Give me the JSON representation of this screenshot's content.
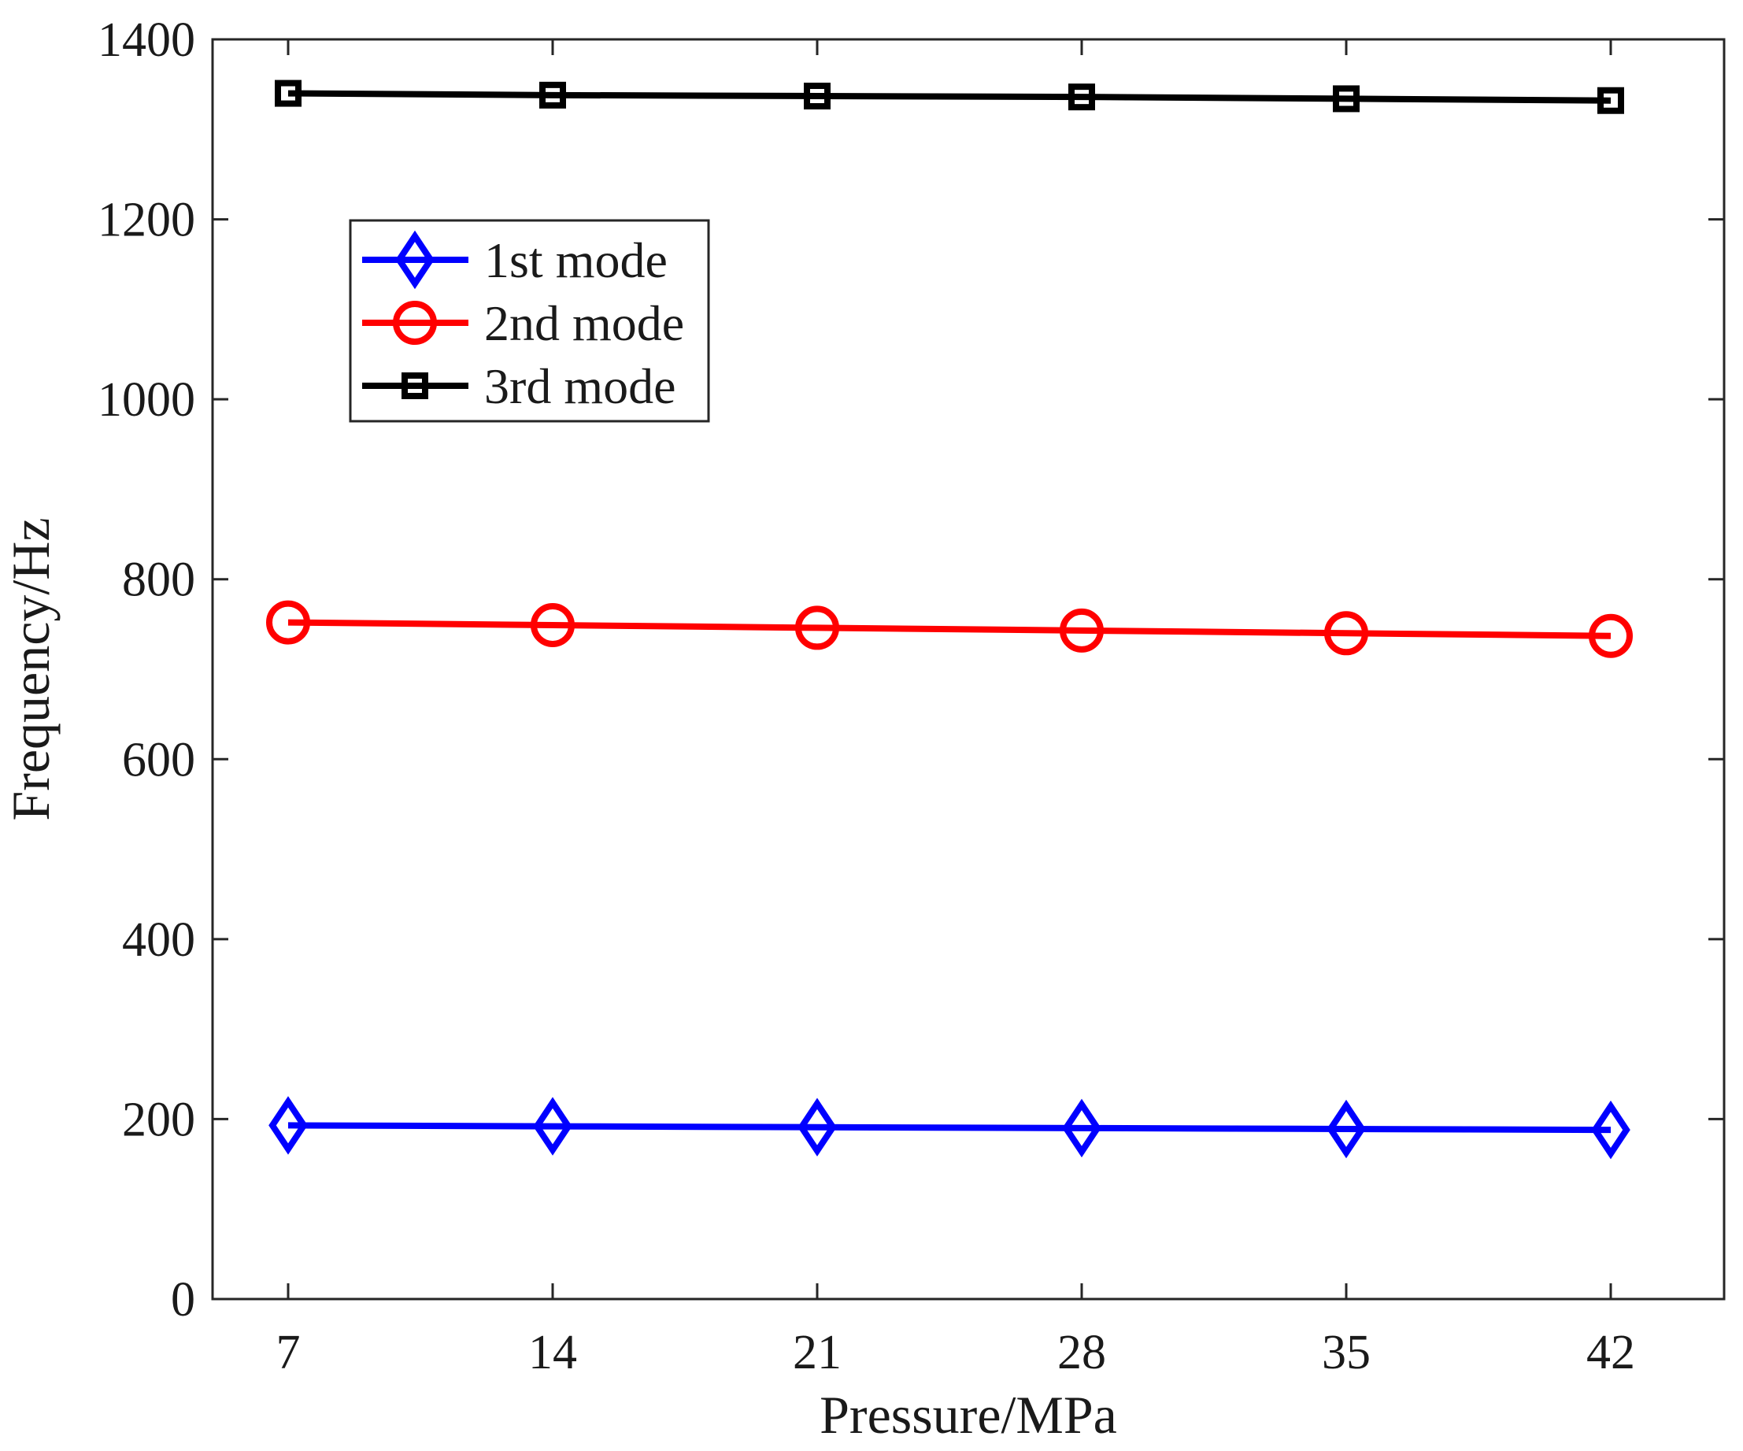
{
  "chart_data": {
    "type": "line",
    "title": "",
    "xlabel": "Pressure/MPa",
    "ylabel": "Frequency/Hz",
    "x": [
      7,
      14,
      21,
      28,
      35,
      42
    ],
    "xlim": [
      5,
      45
    ],
    "ylim": [
      0,
      1400
    ],
    "yticks": [
      0,
      200,
      400,
      600,
      800,
      1000,
      1200,
      1400
    ],
    "xticks": [
      7,
      14,
      21,
      28,
      35,
      42
    ],
    "grid": false,
    "legend_position": "upper-left",
    "series": [
      {
        "name": "1st mode",
        "color": "#0000ff",
        "marker": "diamond",
        "values": [
          193,
          192,
          191,
          190,
          189,
          188
        ]
      },
      {
        "name": "2nd mode",
        "color": "#ff0000",
        "marker": "circle",
        "values": [
          752,
          749,
          746,
          743,
          740,
          737
        ]
      },
      {
        "name": "3rd mode",
        "color": "#000000",
        "marker": "square",
        "values": [
          1340,
          1338,
          1337,
          1336,
          1334,
          1332
        ]
      }
    ]
  }
}
